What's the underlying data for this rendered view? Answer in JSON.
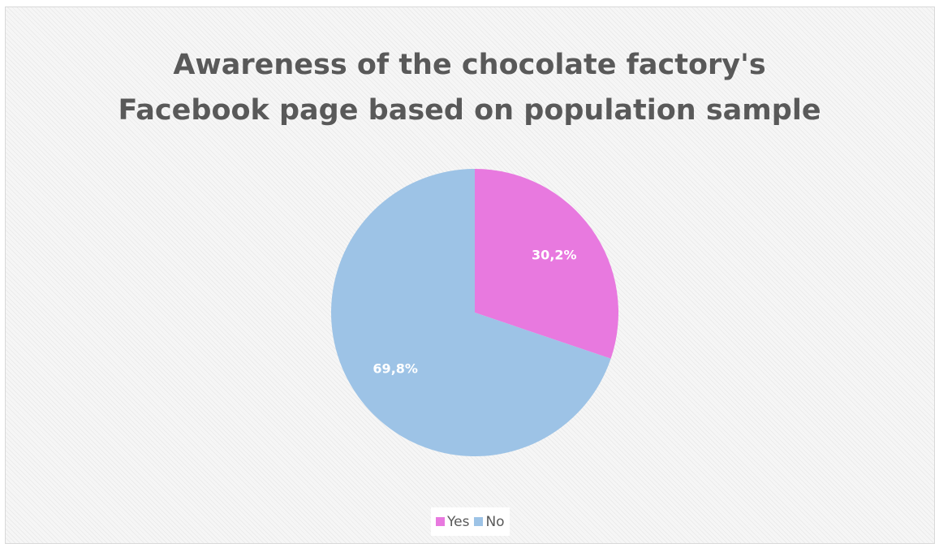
{
  "chart_data": {
    "type": "pie",
    "title": "Awareness of the chocolate factory's Facebook page based on population sample",
    "title_lines": [
      "Awareness of the chocolate factory's",
      "Facebook page based on population sample"
    ],
    "categories": [
      "Yes",
      "No"
    ],
    "values": [
      30.2,
      69.8
    ],
    "data_labels": [
      "30,2%",
      "69,8%"
    ],
    "colors": [
      "#e879df",
      "#9dc3e6"
    ],
    "legend_position": "bottom",
    "start_angle": "top",
    "direction": "clockwise"
  }
}
